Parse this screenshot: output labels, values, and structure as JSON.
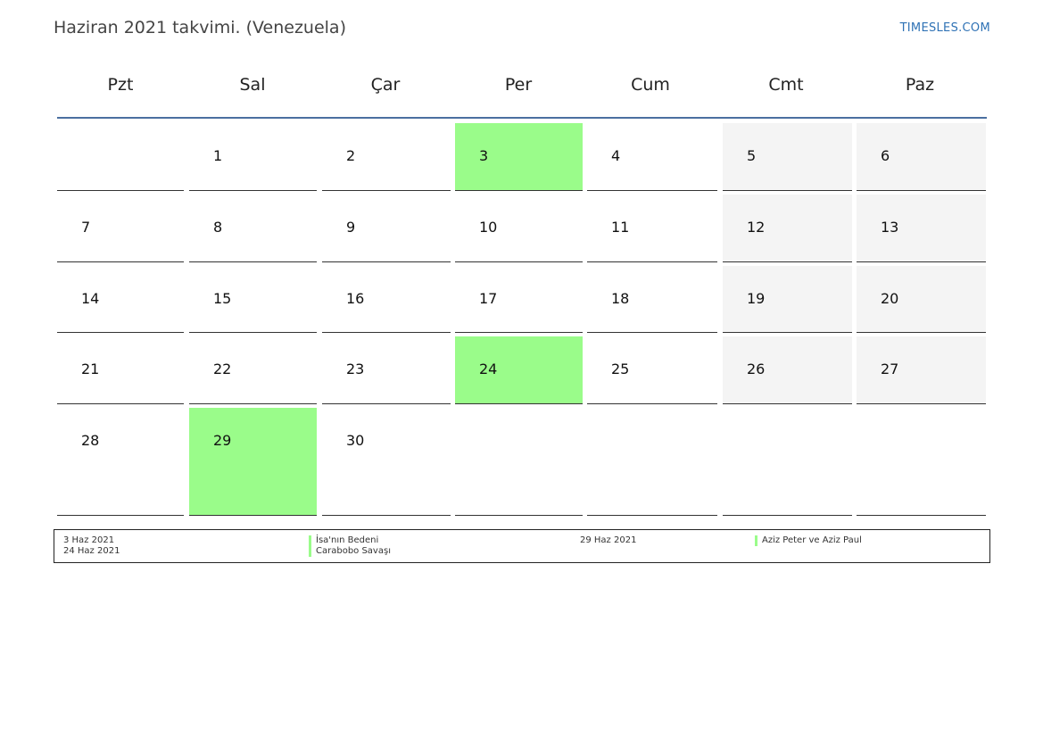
{
  "header": {
    "title": "Haziran 2021 takvimi. (Venezuela)",
    "brand": "TIMESLES.COM"
  },
  "calendar": {
    "weekdays": [
      "Pzt",
      "Sal",
      "Çar",
      "Per",
      "Cum",
      "Cmt",
      "Paz"
    ],
    "weeks": [
      [
        "",
        "1",
        "2",
        "3",
        "4",
        "5",
        "6"
      ],
      [
        "7",
        "8",
        "9",
        "10",
        "11",
        "12",
        "13"
      ],
      [
        "14",
        "15",
        "16",
        "17",
        "18",
        "19",
        "20"
      ],
      [
        "21",
        "22",
        "23",
        "24",
        "25",
        "26",
        "27"
      ],
      [
        "28",
        "29",
        "30",
        "",
        "",
        "",
        ""
      ]
    ],
    "holiday_days": [
      "3",
      "24",
      "29"
    ],
    "weekend_color": "#f4f4f4",
    "holiday_color": "#9afc8a",
    "header_line_color": "#4a6fa0"
  },
  "legend": [
    {
      "date": "3 Haz 2021",
      "name": "İsa'nın Bedeni"
    },
    {
      "date": "24 Haz 2021",
      "name": "Carabobo Savaşı"
    },
    {
      "date": "29 Haz 2021",
      "name": "Aziz Peter ve Aziz Paul"
    }
  ]
}
